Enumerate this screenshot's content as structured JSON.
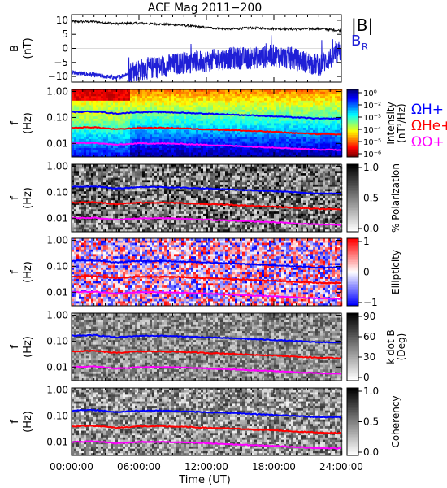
{
  "title": "ACE Mag 2011−200",
  "x_axis": {
    "label": "Time (UT)",
    "ticks": [
      "00:00:00",
      "06:00:00",
      "12:00:00",
      "18:00:00",
      "24:00:00"
    ]
  },
  "colors": {
    "B_total": "#000000",
    "B_R": "#1f1fd6",
    "H_plus": "#0000ff",
    "He_plus": "#ff0000",
    "O_plus": "#ff00ff"
  },
  "panels": [
    {
      "id": "mag",
      "ylabel_line1": "B",
      "ylabel_line2": "(nT)",
      "yticks": [
        "10",
        "5",
        "0",
        "−5",
        "−10"
      ],
      "legend_Btotal": "|B|",
      "legend_BR_main": "B",
      "legend_BR_sub": "R"
    },
    {
      "id": "intensity",
      "ylabel_line1": "f",
      "ylabel_line2": "(Hz)",
      "yticks": [
        "1.00",
        "0.10",
        "0.01"
      ],
      "cbar_label_line1": "Intensity",
      "cbar_label_line2": "(nT²/Hz)",
      "cbar_ticks": [
        "10⁰",
        "10⁻²",
        "10⁻³",
        "10⁻⁴",
        "10⁻⁵",
        "10⁻⁶"
      ],
      "gyro_labels": {
        "H": "ΩH+",
        "He": "ΩHe+",
        "O": "ΩO+"
      }
    },
    {
      "id": "polarization",
      "ylabel_line1": "f",
      "ylabel_line2": "(Hz)",
      "yticks": [
        "1.00",
        "0.10",
        "0.01"
      ],
      "cbar_label_line1": "% Polarization",
      "cbar_label_line2": "",
      "cbar_ticks": [
        "1.0",
        "0.5",
        "0.0"
      ]
    },
    {
      "id": "ellipticity",
      "ylabel_line1": "f",
      "ylabel_line2": "(Hz)",
      "yticks": [
        "1.00",
        "0.10",
        "0.01"
      ],
      "cbar_label_line1": "Ellipticity",
      "cbar_label_line2": "",
      "cbar_ticks": [
        "1",
        "0",
        "−1"
      ]
    },
    {
      "id": "kdotb",
      "ylabel_line1": "f",
      "ylabel_line2": "(Hz)",
      "yticks": [
        "1.00",
        "0.10",
        "0.01"
      ],
      "cbar_label_line1": "k dot B",
      "cbar_label_line2": "(Deg)",
      "cbar_ticks": [
        "90",
        "60",
        "30",
        "0"
      ]
    },
    {
      "id": "coherency",
      "ylabel_line1": "f",
      "ylabel_line2": "(Hz)",
      "yticks": [
        "1.00",
        "0.10",
        "0.01"
      ],
      "cbar_label_line1": "Coherency",
      "cbar_label_line2": "",
      "cbar_ticks": [
        "1.0",
        "0.5",
        "0.0"
      ]
    }
  ],
  "chart_data": [
    {
      "type": "line",
      "xlim": [
        0,
        24
      ],
      "ylim": [
        -12,
        12
      ],
      "series": [
        {
          "name": "|B|",
          "x": [
            0,
            2,
            4,
            6,
            8,
            10,
            12,
            14,
            16,
            18,
            20,
            22,
            24
          ],
          "y": [
            9.5,
            9.5,
            8.8,
            9.0,
            8.6,
            8.2,
            7.4,
            6.8,
            7.3,
            7.0,
            6.8,
            7.0,
            6.3
          ]
        },
        {
          "name": "BR",
          "x": [
            0,
            2,
            4,
            6,
            8,
            10,
            12,
            14,
            16,
            18,
            20,
            22,
            24
          ],
          "y": [
            -8.5,
            -9.5,
            -10.5,
            -7.5,
            -6.5,
            -5.0,
            -4.5,
            -3.5,
            -3.5,
            -2.5,
            -4.0,
            -6.0,
            -1.0
          ]
        }
      ]
    },
    {
      "type": "heatmap",
      "ylog": true,
      "ylim": [
        0.003,
        1.2
      ],
      "xlim": [
        0,
        24
      ],
      "gyrofrequencies": {
        "x": [
          0,
          2,
          4,
          6,
          8,
          10,
          12,
          14,
          16,
          18,
          20,
          22,
          24
        ],
        "H+": [
          0.16,
          0.17,
          0.14,
          0.16,
          0.16,
          0.15,
          0.14,
          0.13,
          0.12,
          0.11,
          0.1,
          0.09,
          0.09
        ],
        "He+": [
          0.04,
          0.042,
          0.035,
          0.04,
          0.04,
          0.038,
          0.035,
          0.033,
          0.03,
          0.028,
          0.025,
          0.023,
          0.022
        ],
        "O+": [
          0.01,
          0.0105,
          0.0088,
          0.01,
          0.01,
          0.0095,
          0.0088,
          0.0082,
          0.0075,
          0.007,
          0.0063,
          0.0058,
          0.0056
        ]
      }
    }
  ]
}
